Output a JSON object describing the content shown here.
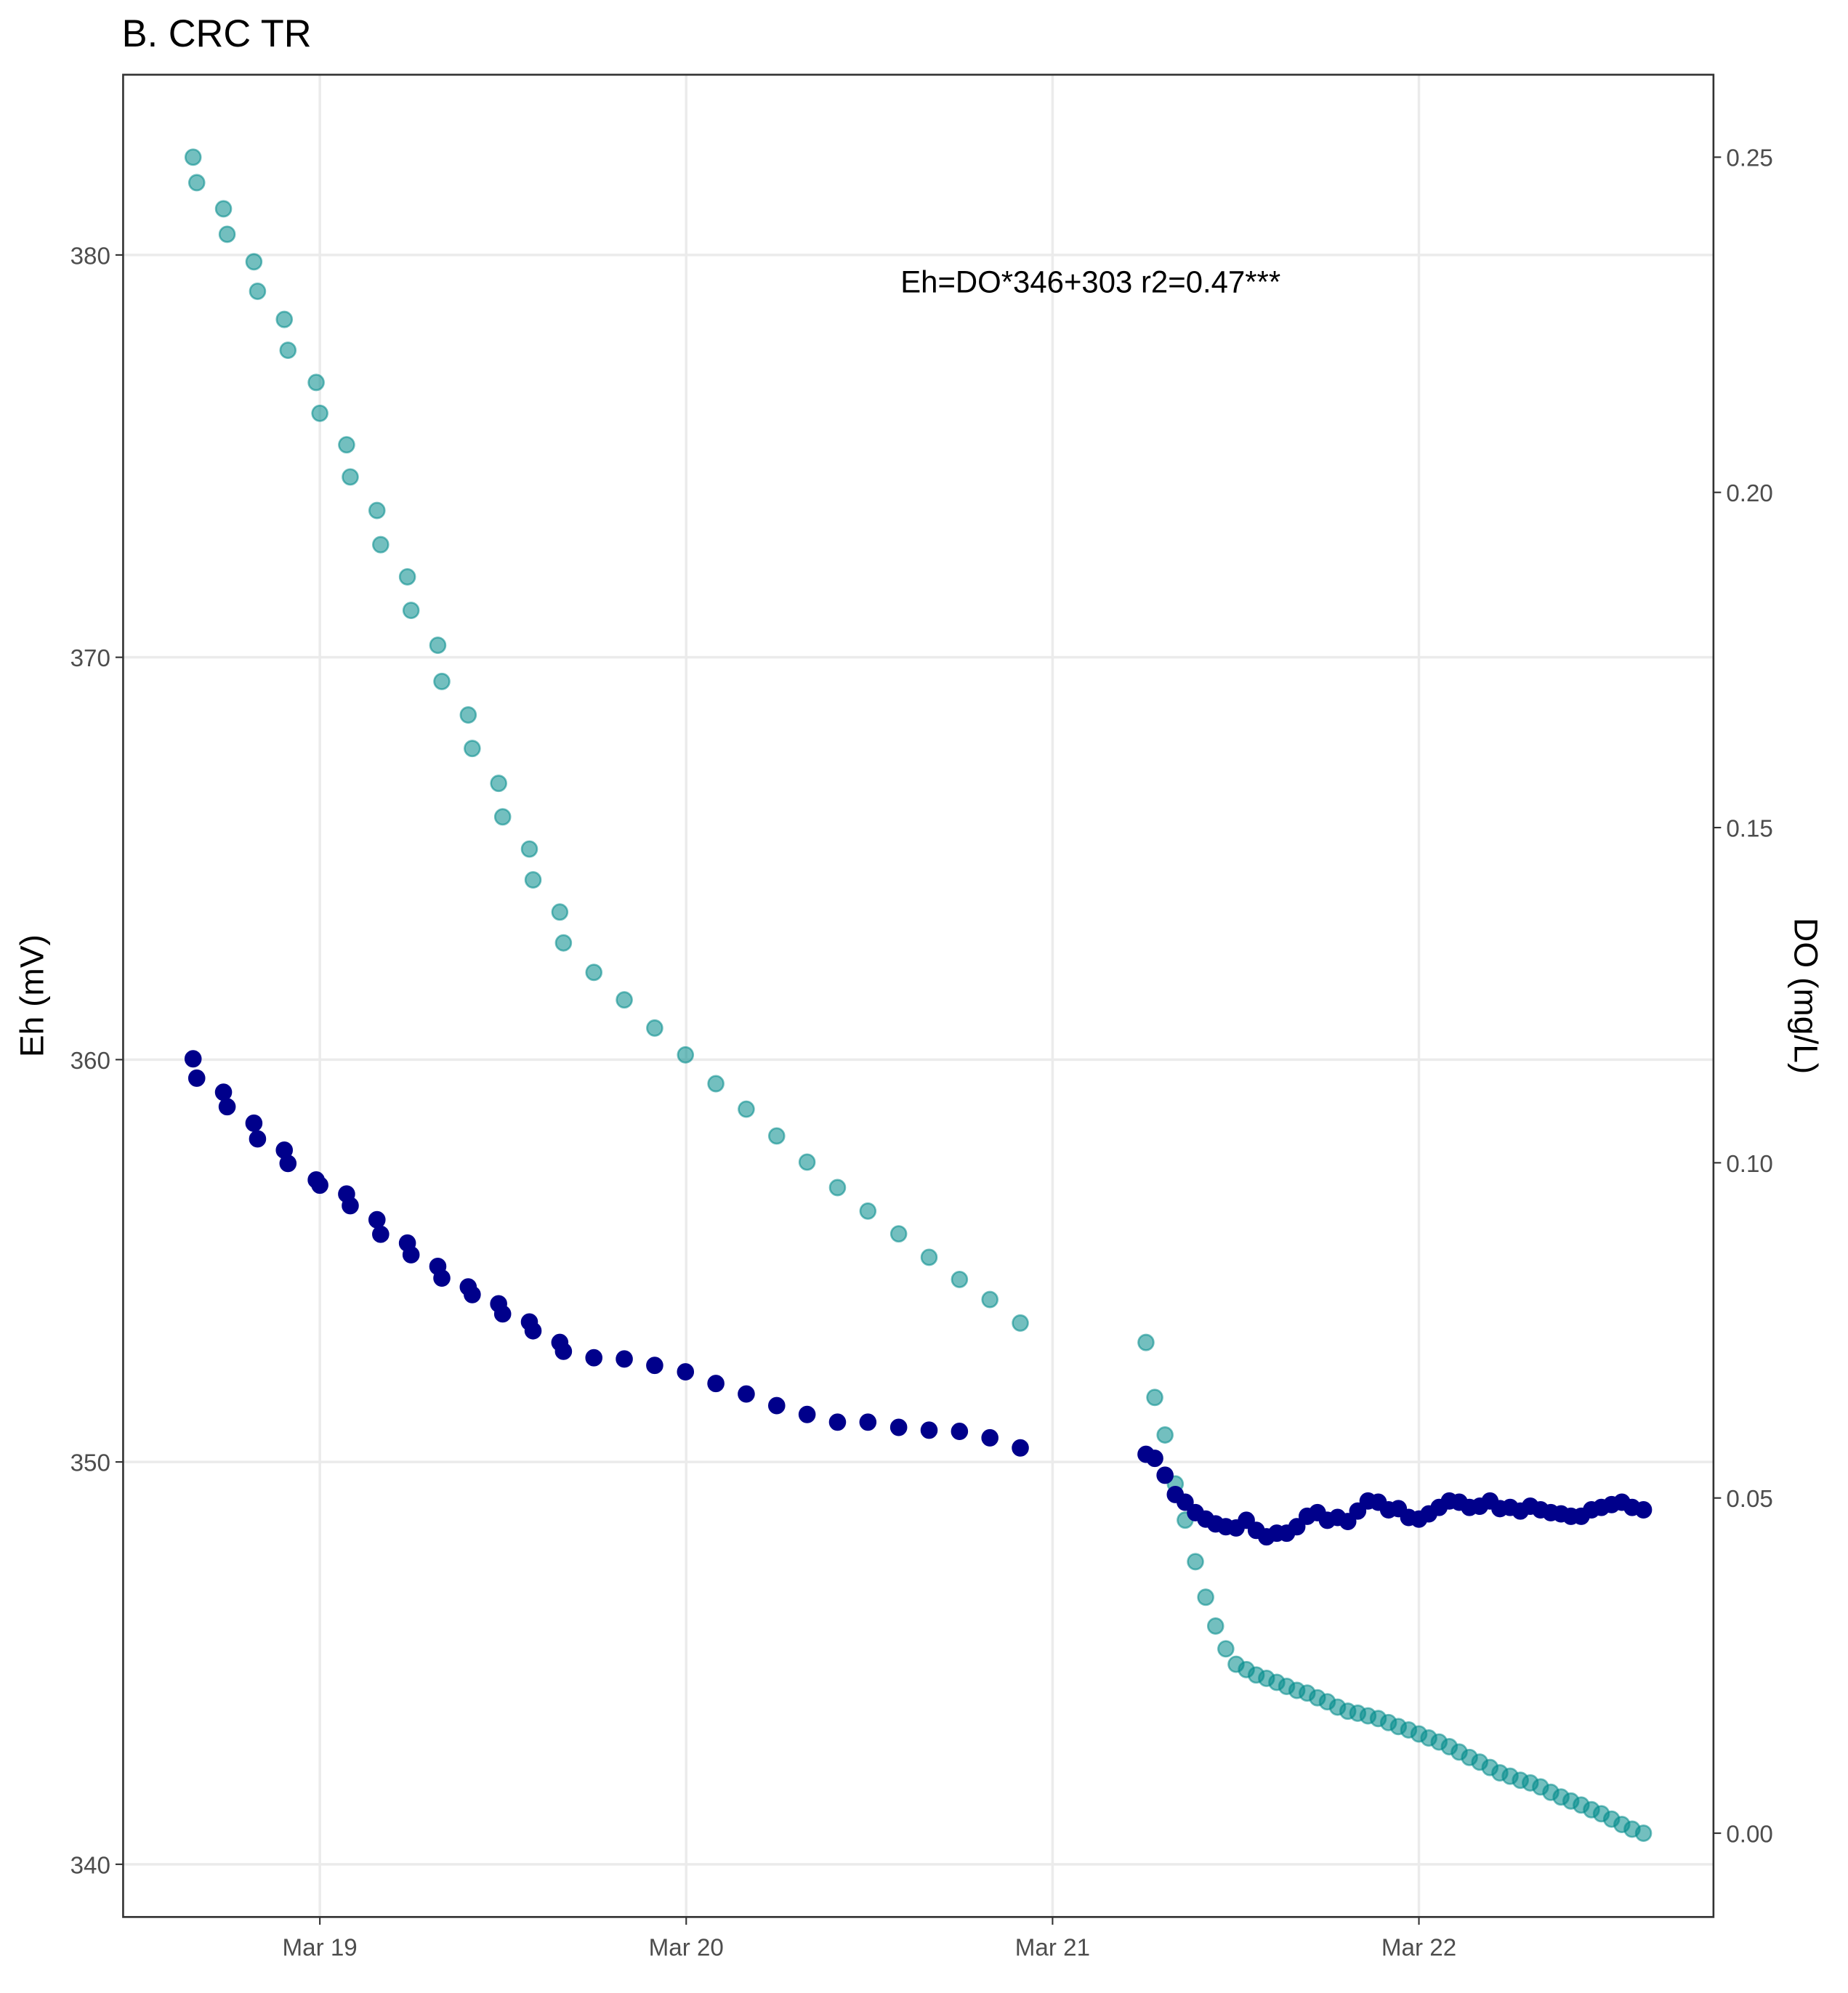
{
  "chart_data": {
    "type": "scatter",
    "title": "B. CRC TR",
    "y_label": "Eh (mV)",
    "y2_label": "DO (mg/L)",
    "annotation": "Eh=DO*346+303 r2=0.47***",
    "grid": true,
    "xlim": [
      18.463,
      22.804
    ],
    "xticks": [
      {
        "value": 19,
        "label": "Mar 19"
      },
      {
        "value": 20,
        "label": "Mar 20"
      },
      {
        "value": 21,
        "label": "Mar 21"
      },
      {
        "value": 22,
        "label": "Mar 22"
      }
    ],
    "ylim": [
      338.69,
      384.48
    ],
    "yticks": [
      340,
      350,
      360,
      370,
      380
    ],
    "y2lim": [
      -0.0125,
      0.2623
    ],
    "y2ticks": [
      {
        "value": 0,
        "label": "0.00"
      },
      {
        "value": 0.05,
        "label": "0.05"
      },
      {
        "value": 0.1,
        "label": "0.10"
      },
      {
        "value": 0.15,
        "label": "0.15"
      },
      {
        "value": 0.2,
        "label": "0.20"
      },
      {
        "value": 0.25,
        "label": "0.25"
      }
    ],
    "x": [
      18.654,
      18.664,
      18.737,
      18.747,
      18.82,
      18.83,
      18.903,
      18.913,
      18.99,
      19.0,
      19.073,
      19.083,
      19.156,
      19.166,
      19.239,
      19.249,
      19.322,
      19.333,
      19.405,
      19.416,
      19.488,
      19.499,
      19.572,
      19.582,
      19.655,
      19.665,
      19.748,
      19.831,
      19.914,
      19.998,
      20.081,
      20.164,
      20.247,
      20.33,
      20.413,
      20.496,
      20.58,
      20.663,
      20.746,
      20.829,
      20.912,
      21.255,
      21.279,
      21.307,
      21.335,
      21.362,
      21.39,
      21.418,
      21.445,
      21.473,
      21.501,
      21.529,
      21.556,
      21.584,
      21.612,
      21.639,
      21.667,
      21.695,
      21.723,
      21.75,
      21.778,
      21.806,
      21.833,
      21.861,
      21.889,
      21.917,
      21.944,
      21.972,
      22.0,
      22.027,
      22.055,
      22.083,
      22.11,
      22.138,
      22.166,
      22.194,
      22.221,
      22.249,
      22.277,
      22.304,
      22.332,
      22.36,
      22.388,
      22.415,
      22.443,
      22.471,
      22.498,
      22.526,
      22.554,
      22.582,
      22.613
    ],
    "series": [
      {
        "color": "#008b8b",
        "opacity": 0.55,
        "axis": "y2",
        "values": [
          0.25,
          0.2462,
          0.2423,
          0.2385,
          0.2344,
          0.23,
          0.2258,
          0.2212,
          0.2164,
          0.2118,
          0.2071,
          0.2023,
          0.1973,
          0.1922,
          0.1874,
          0.1824,
          0.1772,
          0.1718,
          0.1668,
          0.1618,
          0.1566,
          0.1516,
          0.1468,
          0.1422,
          0.1374,
          0.1328,
          0.1284,
          0.1243,
          0.1201,
          0.1161,
          0.1118,
          0.108,
          0.104,
          0.1001,
          0.0963,
          0.0928,
          0.0894,
          0.0859,
          0.0826,
          0.0796,
          0.0761,
          0.0732,
          0.065,
          0.0594,
          0.0521,
          0.0467,
          0.0405,
          0.0352,
          0.0309,
          0.0275,
          0.0252,
          0.0244,
          0.0236,
          0.0231,
          0.0225,
          0.0219,
          0.0213,
          0.0209,
          0.0202,
          0.0196,
          0.0188,
          0.0182,
          0.0179,
          0.0175,
          0.0171,
          0.0165,
          0.0159,
          0.0154,
          0.0148,
          0.0142,
          0.0136,
          0.0129,
          0.0121,
          0.0113,
          0.0106,
          0.0098,
          0.009,
          0.0085,
          0.0079,
          0.0075,
          0.0069,
          0.0061,
          0.0054,
          0.0048,
          0.0042,
          0.0035,
          0.0029,
          0.0021,
          0.0013,
          0.0006,
          0.0
        ]
      },
      {
        "color": "#00008b",
        "opacity": 1,
        "axis": "y",
        "values": [
          360.02,
          359.54,
          359.19,
          358.83,
          358.42,
          358.03,
          357.75,
          357.42,
          357.01,
          356.88,
          356.66,
          356.37,
          356.02,
          355.66,
          355.44,
          355.15,
          354.86,
          354.57,
          354.35,
          354.16,
          353.93,
          353.68,
          353.48,
          353.26,
          352.97,
          352.75,
          352.59,
          352.56,
          352.4,
          352.24,
          351.95,
          351.69,
          351.4,
          351.18,
          350.99,
          350.99,
          350.86,
          350.79,
          350.76,
          350.6,
          350.35,
          350.19,
          350.09,
          349.67,
          349.19,
          349.0,
          348.74,
          348.58,
          348.46,
          348.39,
          348.36,
          348.55,
          348.3,
          348.14,
          348.23,
          348.23,
          348.39,
          348.65,
          348.74,
          348.55,
          348.62,
          348.52,
          348.78,
          349.03,
          349.0,
          348.81,
          348.84,
          348.62,
          348.58,
          348.71,
          348.87,
          349.03,
          349.0,
          348.87,
          348.9,
          349.03,
          348.84,
          348.87,
          348.78,
          348.9,
          348.81,
          348.74,
          348.71,
          348.65,
          348.65,
          348.81,
          348.87,
          348.94,
          349.0,
          348.87,
          348.81
        ]
      }
    ]
  }
}
